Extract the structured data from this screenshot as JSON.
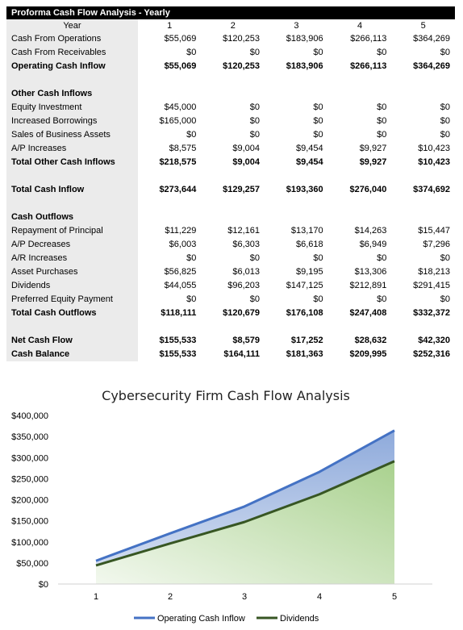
{
  "table": {
    "title": "Proforma Cash Flow Analysis - Yearly",
    "year_label": "Year",
    "years": [
      "1",
      "2",
      "3",
      "4",
      "5"
    ],
    "rows": [
      {
        "label": "Cash From Operations",
        "values": [
          "$55,069",
          "$120,253",
          "$183,906",
          "$266,113",
          "$364,269"
        ],
        "style": "normal"
      },
      {
        "label": "Cash From Receivables",
        "values": [
          "$0",
          "$0",
          "$0",
          "$0",
          "$0"
        ],
        "style": "normal"
      },
      {
        "label": "Operating Cash Inflow",
        "values": [
          "$55,069",
          "$120,253",
          "$183,906",
          "$266,113",
          "$364,269"
        ],
        "style": "bold"
      },
      {
        "label": "",
        "values": [
          "",
          "",
          "",
          "",
          ""
        ],
        "style": "blank"
      },
      {
        "label": "Other Cash Inflows",
        "values": [
          "",
          "",
          "",
          "",
          ""
        ],
        "style": "header"
      },
      {
        "label": "Equity Investment",
        "values": [
          "$45,000",
          "$0",
          "$0",
          "$0",
          "$0"
        ],
        "style": "normal"
      },
      {
        "label": "Increased Borrowings",
        "values": [
          "$165,000",
          "$0",
          "$0",
          "$0",
          "$0"
        ],
        "style": "normal"
      },
      {
        "label": "Sales of Business Assets",
        "values": [
          "$0",
          "$0",
          "$0",
          "$0",
          "$0"
        ],
        "style": "normal"
      },
      {
        "label": "A/P Increases",
        "values": [
          "$8,575",
          "$9,004",
          "$9,454",
          "$9,927",
          "$10,423"
        ],
        "style": "normal"
      },
      {
        "label": "Total Other Cash Inflows",
        "values": [
          "$218,575",
          "$9,004",
          "$9,454",
          "$9,927",
          "$10,423"
        ],
        "style": "bold"
      },
      {
        "label": "",
        "values": [
          "",
          "",
          "",
          "",
          ""
        ],
        "style": "blank"
      },
      {
        "label": "Total Cash Inflow",
        "values": [
          "$273,644",
          "$129,257",
          "$193,360",
          "$276,040",
          "$374,692"
        ],
        "style": "bold"
      },
      {
        "label": "",
        "values": [
          "",
          "",
          "",
          "",
          ""
        ],
        "style": "blank"
      },
      {
        "label": "Cash Outflows",
        "values": [
          "",
          "",
          "",
          "",
          ""
        ],
        "style": "header"
      },
      {
        "label": "Repayment of Principal",
        "values": [
          "$11,229",
          "$12,161",
          "$13,170",
          "$14,263",
          "$15,447"
        ],
        "style": "normal"
      },
      {
        "label": "A/P Decreases",
        "values": [
          "$6,003",
          "$6,303",
          "$6,618",
          "$6,949",
          "$7,296"
        ],
        "style": "normal"
      },
      {
        "label": "A/R Increases",
        "values": [
          "$0",
          "$0",
          "$0",
          "$0",
          "$0"
        ],
        "style": "normal"
      },
      {
        "label": "Asset Purchases",
        "values": [
          "$56,825",
          "$6,013",
          "$9,195",
          "$13,306",
          "$18,213"
        ],
        "style": "normal"
      },
      {
        "label": "Dividends",
        "values": [
          "$44,055",
          "$96,203",
          "$147,125",
          "$212,891",
          "$291,415"
        ],
        "style": "normal"
      },
      {
        "label": "Preferred Equity Payment",
        "values": [
          "$0",
          "$0",
          "$0",
          "$0",
          "$0"
        ],
        "style": "normal"
      },
      {
        "label": "Total Cash Outflows",
        "values": [
          "$118,111",
          "$120,679",
          "$176,108",
          "$247,408",
          "$332,372"
        ],
        "style": "bold"
      },
      {
        "label": "",
        "values": [
          "",
          "",
          "",
          "",
          ""
        ],
        "style": "blank"
      },
      {
        "label": "Net Cash Flow",
        "values": [
          "$155,533",
          "$8,579",
          "$17,252",
          "$28,632",
          "$42,320"
        ],
        "style": "bold"
      },
      {
        "label": "Cash Balance",
        "values": [
          "$155,533",
          "$164,111",
          "$181,363",
          "$209,995",
          "$252,316"
        ],
        "style": "bold"
      }
    ]
  },
  "chart_data": {
    "type": "area",
    "title": "Cybersecurity Firm Cash Flow Analysis",
    "categories": [
      "1",
      "2",
      "3",
      "4",
      "5"
    ],
    "series": [
      {
        "name": "Operating Cash Inflow",
        "values": [
          55069,
          120253,
          183906,
          266113,
          364269
        ],
        "color": "#4472c4"
      },
      {
        "name": "Dividends",
        "values": [
          44055,
          96203,
          147125,
          212891,
          291415
        ],
        "color": "#375623"
      }
    ],
    "ylim": [
      0,
      400000
    ],
    "yticks": [
      "$0",
      "$50,000",
      "$100,000",
      "$150,000",
      "$200,000",
      "$250,000",
      "$300,000",
      "$350,000",
      "$400,000"
    ],
    "xlabel": "",
    "ylabel": "",
    "legend": "bottom",
    "grid": false
  }
}
